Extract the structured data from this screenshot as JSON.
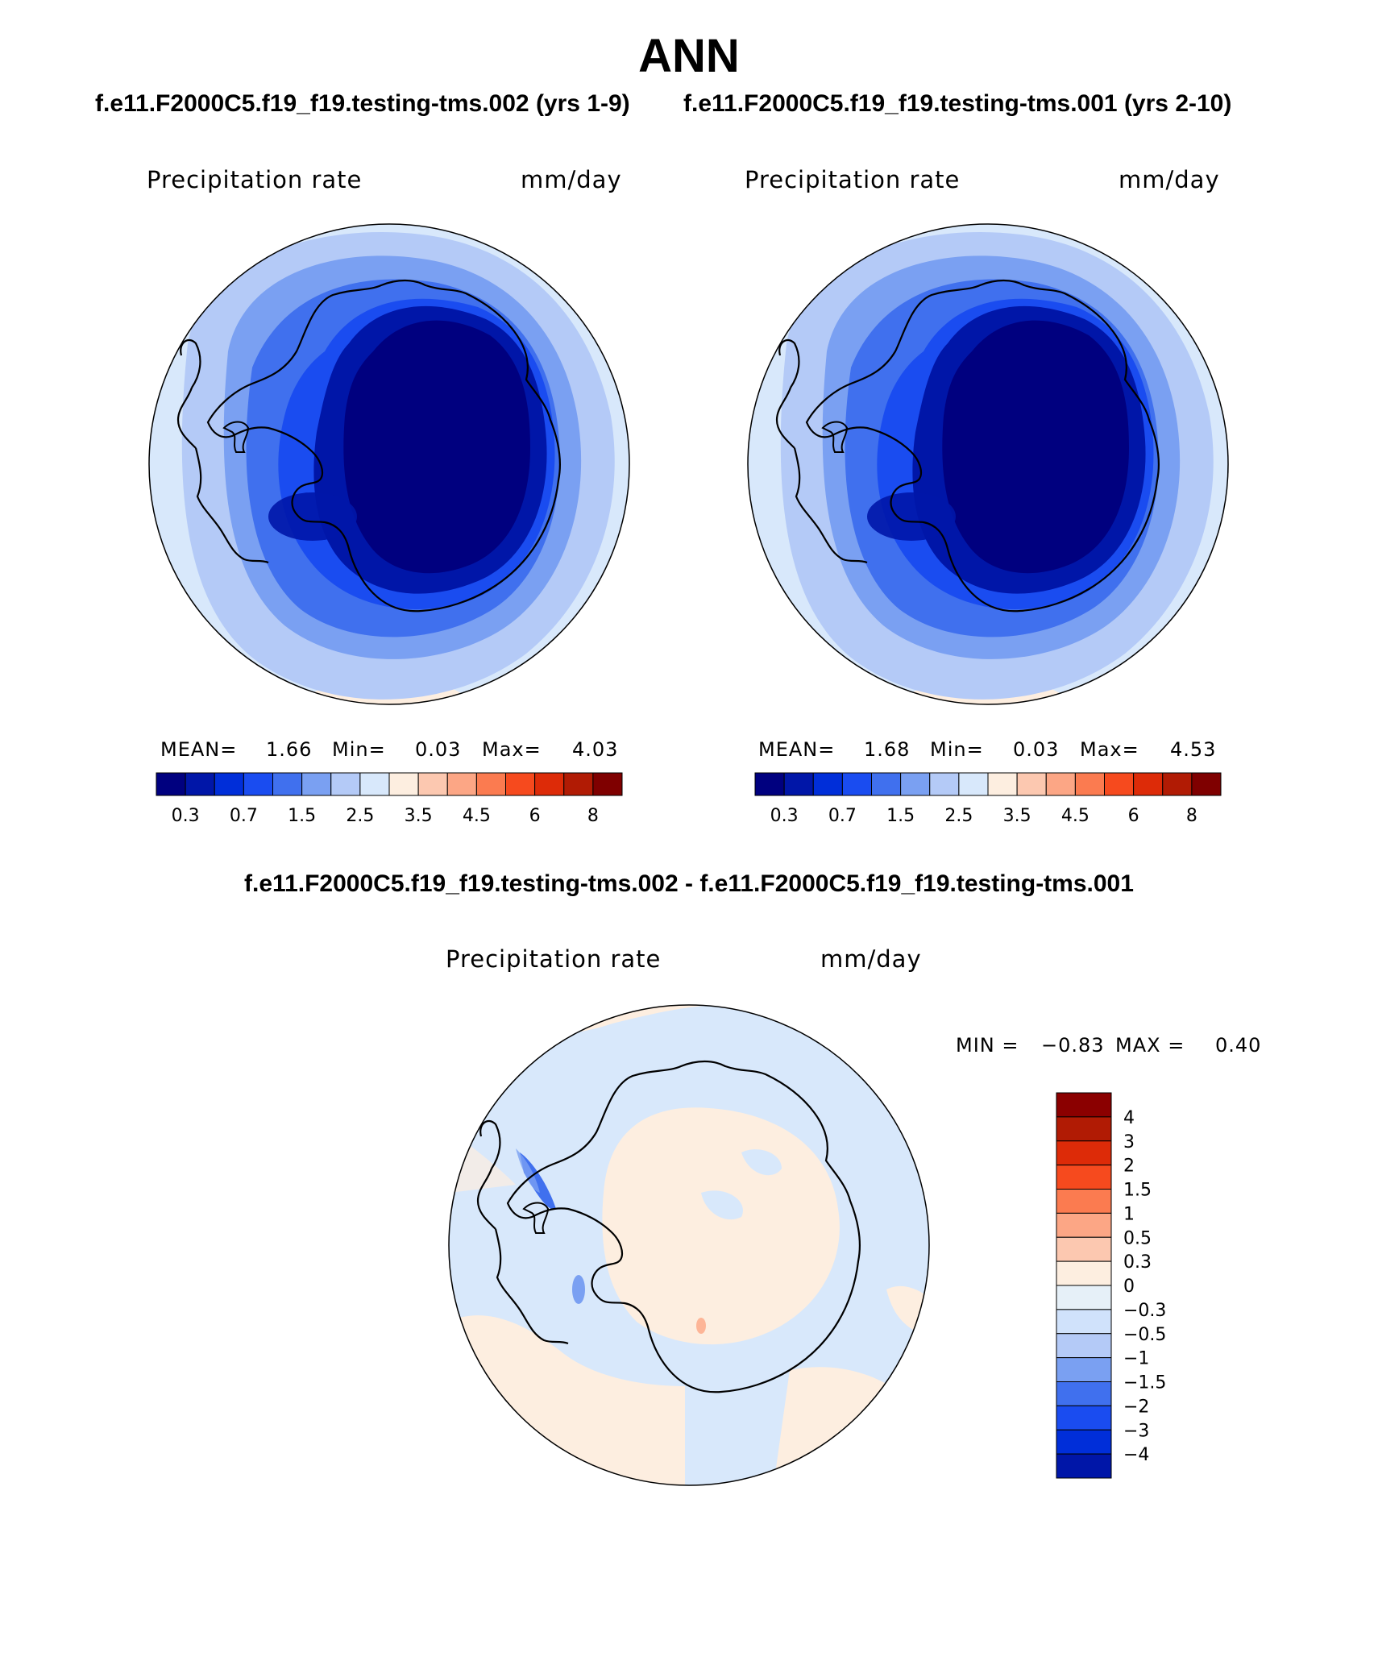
{
  "header": {
    "title": "ANN",
    "left_subtitle": "f.e11.F2000C5.f19_f19.testing-tms.002 (yrs 1-9)",
    "right_subtitle": "f.e11.F2000C5.f19_f19.testing-tms.001 (yrs 2-10)",
    "diff_title": "f.e11.F2000C5.f19_f19.testing-tms.002 - f.e11.F2000C5.f19_f19.testing-tms.001"
  },
  "panels": {
    "left": {
      "variable": "Precipitation rate",
      "units": "mm/day",
      "mean_label": "MEAN=",
      "mean_value": "1.66",
      "min_label": "Min=",
      "min_value": "0.03",
      "max_label": "Max=",
      "max_value": "4.03"
    },
    "right": {
      "variable": "Precipitation rate",
      "units": "mm/day",
      "mean_label": "MEAN=",
      "mean_value": "1.68",
      "min_label": "Min=",
      "min_value": "0.03",
      "max_label": "Max=",
      "max_value": "4.53"
    },
    "diff": {
      "variable": "Precipitation rate",
      "units": "mm/day",
      "min_label": "MIN =",
      "min_value": "−0.83",
      "max_label": "MAX =",
      "max_value": "0.40"
    }
  },
  "colorbars": {
    "main": {
      "colors": [
        "#00007f",
        "#0016a8",
        "#002ed9",
        "#1a4cf0",
        "#4070ee",
        "#7aa0f2",
        "#b4caf7",
        "#d8e8fb",
        "#fdeee0",
        "#fcc8b0",
        "#fca685",
        "#fb7b50",
        "#f64a1e",
        "#dd2b08",
        "#b11b04",
        "#7f0000"
      ],
      "tick_labels": [
        "0.3",
        "0.7",
        "1.5",
        "2.5",
        "3.5",
        "4.5",
        "6",
        "8"
      ]
    },
    "diff": {
      "colors": [
        "#8b0000",
        "#b11b04",
        "#dd2b08",
        "#f64a1e",
        "#fb7b50",
        "#fca685",
        "#fcc8b0",
        "#fdeee0",
        "#e6f0f8",
        "#d0e2fb",
        "#b4caf7",
        "#7aa0f2",
        "#4070ee",
        "#1a4cf0",
        "#002ed9",
        "#0016a8"
      ],
      "tick_labels": [
        "4",
        "3",
        "2",
        "1.5",
        "1",
        "0.5",
        "0.3",
        "0",
        "−0.3",
        "−0.5",
        "−1",
        "−1.5",
        "−2",
        "−3",
        "−4"
      ]
    }
  }
}
